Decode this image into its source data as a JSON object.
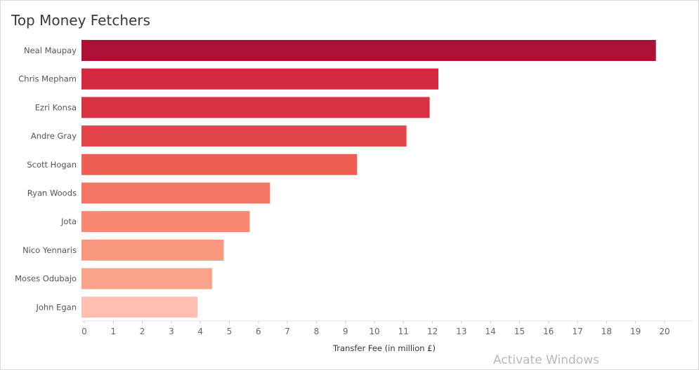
{
  "chart_data": {
    "type": "bar",
    "orientation": "horizontal",
    "title": "Top Money Fetchers",
    "xlabel": "Transfer Fee (in million £)",
    "ylabel": "",
    "xlim": [
      0,
      20.8
    ],
    "xticks": [
      0,
      1,
      2,
      3,
      4,
      5,
      6,
      7,
      8,
      9,
      10,
      11,
      12,
      13,
      14,
      15,
      16,
      17,
      18,
      19,
      20
    ],
    "grid": false,
    "categories": [
      "Neal Maupay",
      "Chris Mepham",
      "Ezri Konsa",
      "Andre Gray",
      "Scott Hogan",
      "Ryan Woods",
      "Jota",
      "Nico Yennaris",
      "Moses Odubajo",
      "John Egan"
    ],
    "values": [
      19.8,
      12.3,
      12.0,
      11.2,
      9.5,
      6.5,
      5.8,
      4.9,
      4.5,
      4.0
    ],
    "colors": [
      "#ad1136",
      "#d42a3f",
      "#d93343",
      "#e2464a",
      "#ef5e54",
      "#f47563",
      "#f78871",
      "#f9987e",
      "#fba38a",
      "#fdbfb2"
    ]
  },
  "watermark": "Activate Windows"
}
